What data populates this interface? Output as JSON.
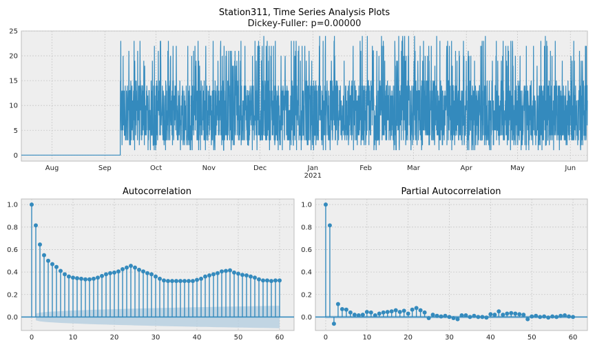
{
  "figure": {
    "title": "Station311, Time Series Analysis Plots",
    "subtitle": "Dickey-Fuller: p=0.00000"
  },
  "colors": {
    "series": "#348abd",
    "panel_bg": "#eeeeee",
    "grid": "#c8c8c8",
    "band": "#b9d0e0"
  },
  "chart_data": [
    {
      "type": "line",
      "name": "time-series",
      "title": "Station311, Time Series Analysis Plots",
      "subtitle": "Dickey-Fuller: p=0.00000",
      "x_range": [
        "2020-07-14",
        "2021-06-11"
      ],
      "ylim": [
        -1.2,
        25
      ],
      "yticks": [
        0,
        5,
        10,
        15,
        20,
        25
      ],
      "xticks": [
        {
          "date": "2020-08-01",
          "label": "Aug"
        },
        {
          "date": "2020-09-01",
          "label": "Sep"
        },
        {
          "date": "2020-10-01",
          "label": "Oct"
        },
        {
          "date": "2020-11-01",
          "label": "Nov"
        },
        {
          "date": "2020-12-01",
          "label": "Dec"
        },
        {
          "date": "2021-01-01",
          "label": "Jan",
          "sublabel": "2021"
        },
        {
          "date": "2021-02-01",
          "label": "Feb"
        },
        {
          "date": "2021-03-01",
          "label": "Mar"
        },
        {
          "date": "2021-04-01",
          "label": "Apr"
        },
        {
          "date": "2021-05-01",
          "label": "May"
        },
        {
          "date": "2021-06-01",
          "label": "Jun"
        }
      ],
      "segments": [
        {
          "from": "2020-07-14",
          "to": "2020-09-10",
          "value": 0
        },
        {
          "from": "2020-09-10",
          "to": "2021-06-11",
          "value_range": [
            0,
            24
          ]
        }
      ],
      "grid": true
    },
    {
      "type": "stem",
      "name": "acf",
      "title": "Autocorrelation",
      "xlim": [
        -2.5,
        63.5
      ],
      "ylim": [
        -0.12,
        1.05
      ],
      "xticks": [
        0,
        10,
        20,
        30,
        40,
        50,
        60
      ],
      "yticks": [
        0.0,
        0.2,
        0.4,
        0.6,
        0.8,
        1.0
      ],
      "lags": [
        0,
        1,
        2,
        3,
        4,
        5,
        6,
        7,
        8,
        9,
        10,
        11,
        12,
        13,
        14,
        15,
        16,
        17,
        18,
        19,
        20,
        21,
        22,
        23,
        24,
        25,
        26,
        27,
        28,
        29,
        30,
        31,
        32,
        33,
        34,
        35,
        36,
        37,
        38,
        39,
        40,
        41,
        42,
        43,
        44,
        45,
        46,
        47,
        48,
        49,
        50,
        51,
        52,
        53,
        54,
        55,
        56,
        57,
        58,
        59,
        60
      ],
      "values": [
        1.0,
        0.815,
        0.645,
        0.55,
        0.5,
        0.47,
        0.445,
        0.41,
        0.38,
        0.36,
        0.35,
        0.345,
        0.34,
        0.335,
        0.335,
        0.34,
        0.35,
        0.365,
        0.38,
        0.39,
        0.395,
        0.405,
        0.425,
        0.44,
        0.455,
        0.44,
        0.42,
        0.405,
        0.39,
        0.38,
        0.36,
        0.34,
        0.325,
        0.32,
        0.32,
        0.32,
        0.32,
        0.32,
        0.32,
        0.32,
        0.33,
        0.34,
        0.36,
        0.37,
        0.38,
        0.39,
        0.405,
        0.41,
        0.415,
        0.395,
        0.385,
        0.375,
        0.37,
        0.36,
        0.35,
        0.335,
        0.325,
        0.325,
        0.32,
        0.325,
        0.325
      ],
      "confidence_band": {
        "at_lag_1": 0.03,
        "at_lag_60": 0.1
      },
      "grid": true
    },
    {
      "type": "stem",
      "name": "pacf",
      "title": "Partial Autocorrelation",
      "xlim": [
        -2.5,
        63.5
      ],
      "ylim": [
        -0.12,
        1.05
      ],
      "xticks": [
        0,
        10,
        20,
        30,
        40,
        50,
        60
      ],
      "yticks": [
        0.0,
        0.2,
        0.4,
        0.6,
        0.8,
        1.0
      ],
      "lags": [
        0,
        1,
        2,
        3,
        4,
        5,
        6,
        7,
        8,
        9,
        10,
        11,
        12,
        13,
        14,
        15,
        16,
        17,
        18,
        19,
        20,
        21,
        22,
        23,
        24,
        25,
        26,
        27,
        28,
        29,
        30,
        31,
        32,
        33,
        34,
        35,
        36,
        37,
        38,
        39,
        40,
        41,
        42,
        43,
        44,
        45,
        46,
        47,
        48,
        49,
        50,
        51,
        52,
        53,
        54,
        55,
        56,
        57,
        58,
        59,
        60
      ],
      "values": [
        1.0,
        0.815,
        -0.06,
        0.115,
        0.07,
        0.065,
        0.04,
        0.02,
        0.015,
        0.02,
        0.045,
        0.04,
        0.015,
        0.03,
        0.04,
        0.045,
        0.05,
        0.06,
        0.045,
        0.055,
        0.03,
        0.065,
        0.08,
        0.06,
        0.04,
        -0.01,
        0.02,
        0.01,
        0.005,
        0.01,
        0.0,
        -0.01,
        -0.02,
        0.015,
        0.015,
        0.0,
        0.01,
        0.0,
        0.0,
        -0.005,
        0.025,
        0.02,
        0.05,
        0.02,
        0.03,
        0.035,
        0.03,
        0.025,
        0.02,
        -0.02,
        0.005,
        0.01,
        0.0,
        0.005,
        -0.005,
        0.005,
        0.0,
        0.01,
        0.015,
        0.005,
        0.0
      ],
      "confidence_band": {
        "constant": 0.012
      },
      "grid": true
    }
  ]
}
